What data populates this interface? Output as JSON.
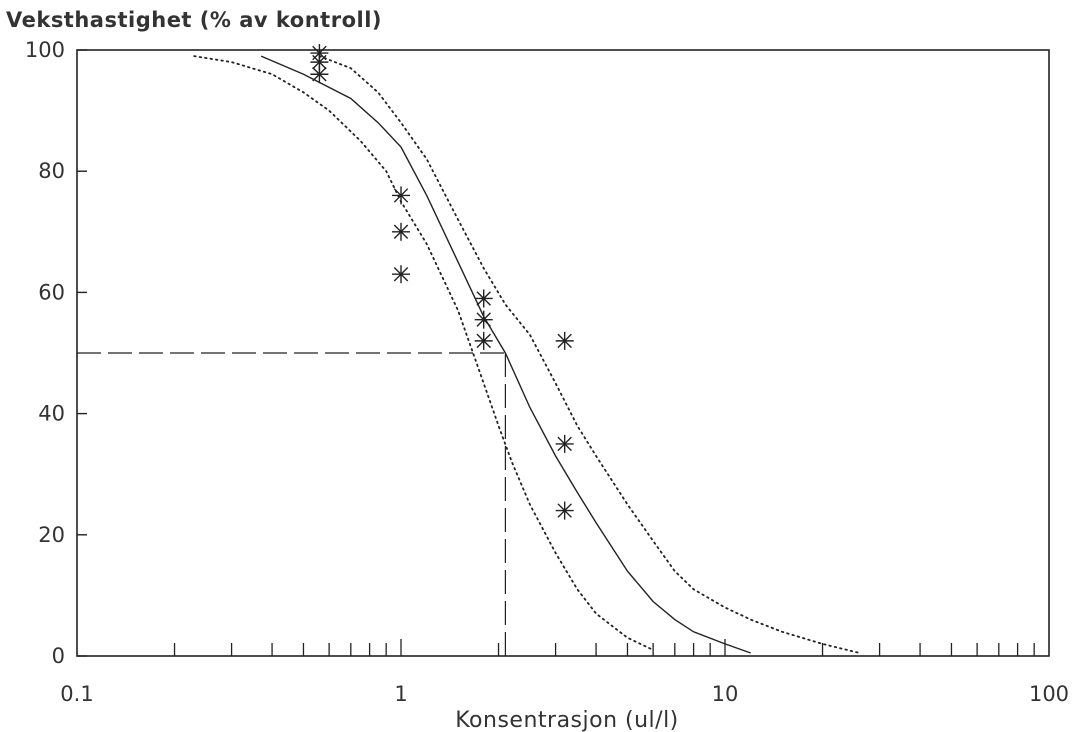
{
  "chart_data": {
    "type": "scatter",
    "title": "",
    "ylabel": "Veksthastighet (% av kontroll)",
    "xlabel": "Konsentrasjon (ul/l)",
    "x_scale": "log",
    "xlim": [
      0.1,
      100
    ],
    "ylim": [
      0,
      100
    ],
    "x_ticks": [
      0.1,
      1,
      10,
      100
    ],
    "x_tick_labels": [
      "0.1",
      "1",
      "10",
      "100"
    ],
    "y_ticks": [
      0,
      20,
      40,
      60,
      80,
      100
    ],
    "y_tick_labels": [
      "0",
      "20",
      "40",
      "60",
      "80",
      "100"
    ],
    "grid": false,
    "observations": {
      "x": [
        0.56,
        0.56,
        0.56,
        1.0,
        1.0,
        1.0,
        1.8,
        1.8,
        1.8,
        3.2,
        3.2,
        3.2
      ],
      "y": [
        99.5,
        98,
        96,
        76,
        70,
        63,
        59,
        55.5,
        52,
        52,
        35,
        24
      ]
    },
    "fitted_curve": {
      "x": [
        0.37,
        0.5,
        0.7,
        0.85,
        1.0,
        1.2,
        1.5,
        1.8,
        2.1,
        2.5,
        3.0,
        3.5,
        4.0,
        5.0,
        6.0,
        7.0,
        8.0,
        10.0,
        12.0
      ],
      "y": [
        99,
        96,
        92,
        88,
        84,
        76,
        65,
        56,
        50,
        41,
        33,
        27,
        22,
        14,
        9,
        6,
        4,
        2,
        0.5
      ]
    },
    "confidence_upper": {
      "x": [
        0.56,
        0.7,
        0.85,
        1.0,
        1.2,
        1.5,
        1.8,
        2.1,
        2.5,
        3.0,
        3.5,
        4.0,
        5.0,
        6.0,
        7.0,
        8.0,
        10.0,
        12.0,
        15.0,
        20.0,
        26.0
      ],
      "y": [
        99,
        97,
        93,
        88,
        82,
        72,
        64,
        58,
        53,
        45,
        38,
        33,
        25,
        19,
        14,
        11,
        8,
        6,
        4,
        2,
        0.5
      ]
    },
    "confidence_lower": {
      "x": [
        0.23,
        0.3,
        0.4,
        0.5,
        0.6,
        0.75,
        0.9,
        1.0,
        1.2,
        1.5,
        1.8,
        2.0,
        2.2,
        2.5,
        3.0,
        3.5,
        4.0,
        5.0,
        6.0
      ],
      "y": [
        99,
        98,
        96,
        93,
        90,
        85,
        80,
        75,
        68,
        57,
        45,
        38,
        32,
        25,
        17,
        11,
        7,
        3,
        1
      ]
    },
    "reference": {
      "x": 2.1,
      "y": 50
    }
  }
}
